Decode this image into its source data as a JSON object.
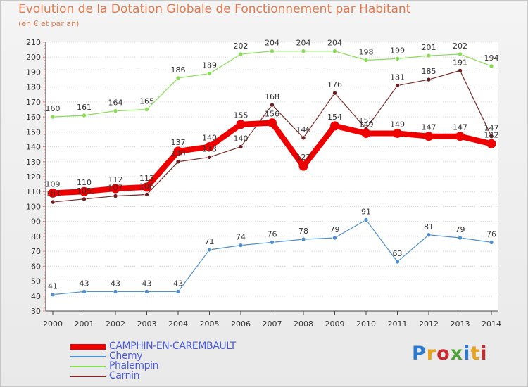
{
  "header": {
    "title": "Evolution de la Dotation Globale de Fonctionnement par Habitant",
    "subtitle": "(en € et par an)"
  },
  "logo": {
    "text": "Proxiti",
    "colors": [
      "#2b7ad1",
      "#e8a21c",
      "#c7292e",
      "#4fa33a",
      "#2b7ad1",
      "#e8a21c",
      "#c7292e"
    ]
  },
  "chart_data": {
    "type": "line",
    "title": "Evolution de la Dotation Globale de Fonctionnement par Habitant",
    "subtitle": "(en € et par an)",
    "xlabel": "",
    "ylabel": "",
    "ylim": [
      30,
      210
    ],
    "yticks": [
      30,
      40,
      50,
      60,
      70,
      80,
      90,
      100,
      110,
      120,
      130,
      140,
      150,
      160,
      170,
      180,
      190,
      200,
      210
    ],
    "grid": true,
    "legend_position": "bottom-left",
    "categories": [
      "2000",
      "2001",
      "2002",
      "2003",
      "2004",
      "2005",
      "2006",
      "2007",
      "2008",
      "2009",
      "2010",
      "2011",
      "2012",
      "2013",
      "2014"
    ],
    "series": [
      {
        "name": "CAMPHIN-EN-CAREMBAULT",
        "color": "#ee0000",
        "values": [
          109,
          110,
          112,
          113,
          137,
          140,
          155,
          156,
          127,
          154,
          149,
          149,
          147,
          147,
          142
        ]
      },
      {
        "name": "Chemy",
        "color": "#4e8fce",
        "values": [
          41,
          43,
          43,
          43,
          43,
          71,
          74,
          76,
          78,
          79,
          91,
          63,
          81,
          79,
          76
        ]
      },
      {
        "name": "Phalempin",
        "color": "#88dd55",
        "values": [
          160,
          161,
          164,
          165,
          186,
          189,
          202,
          204,
          204,
          204,
          198,
          199,
          201,
          202,
          194
        ]
      },
      {
        "name": "Carnin",
        "color": "#7a2a2a",
        "values": [
          103,
          105,
          107,
          108,
          130,
          133,
          140,
          168,
          146,
          176,
          152,
          181,
          185,
          191,
          147
        ]
      }
    ]
  }
}
